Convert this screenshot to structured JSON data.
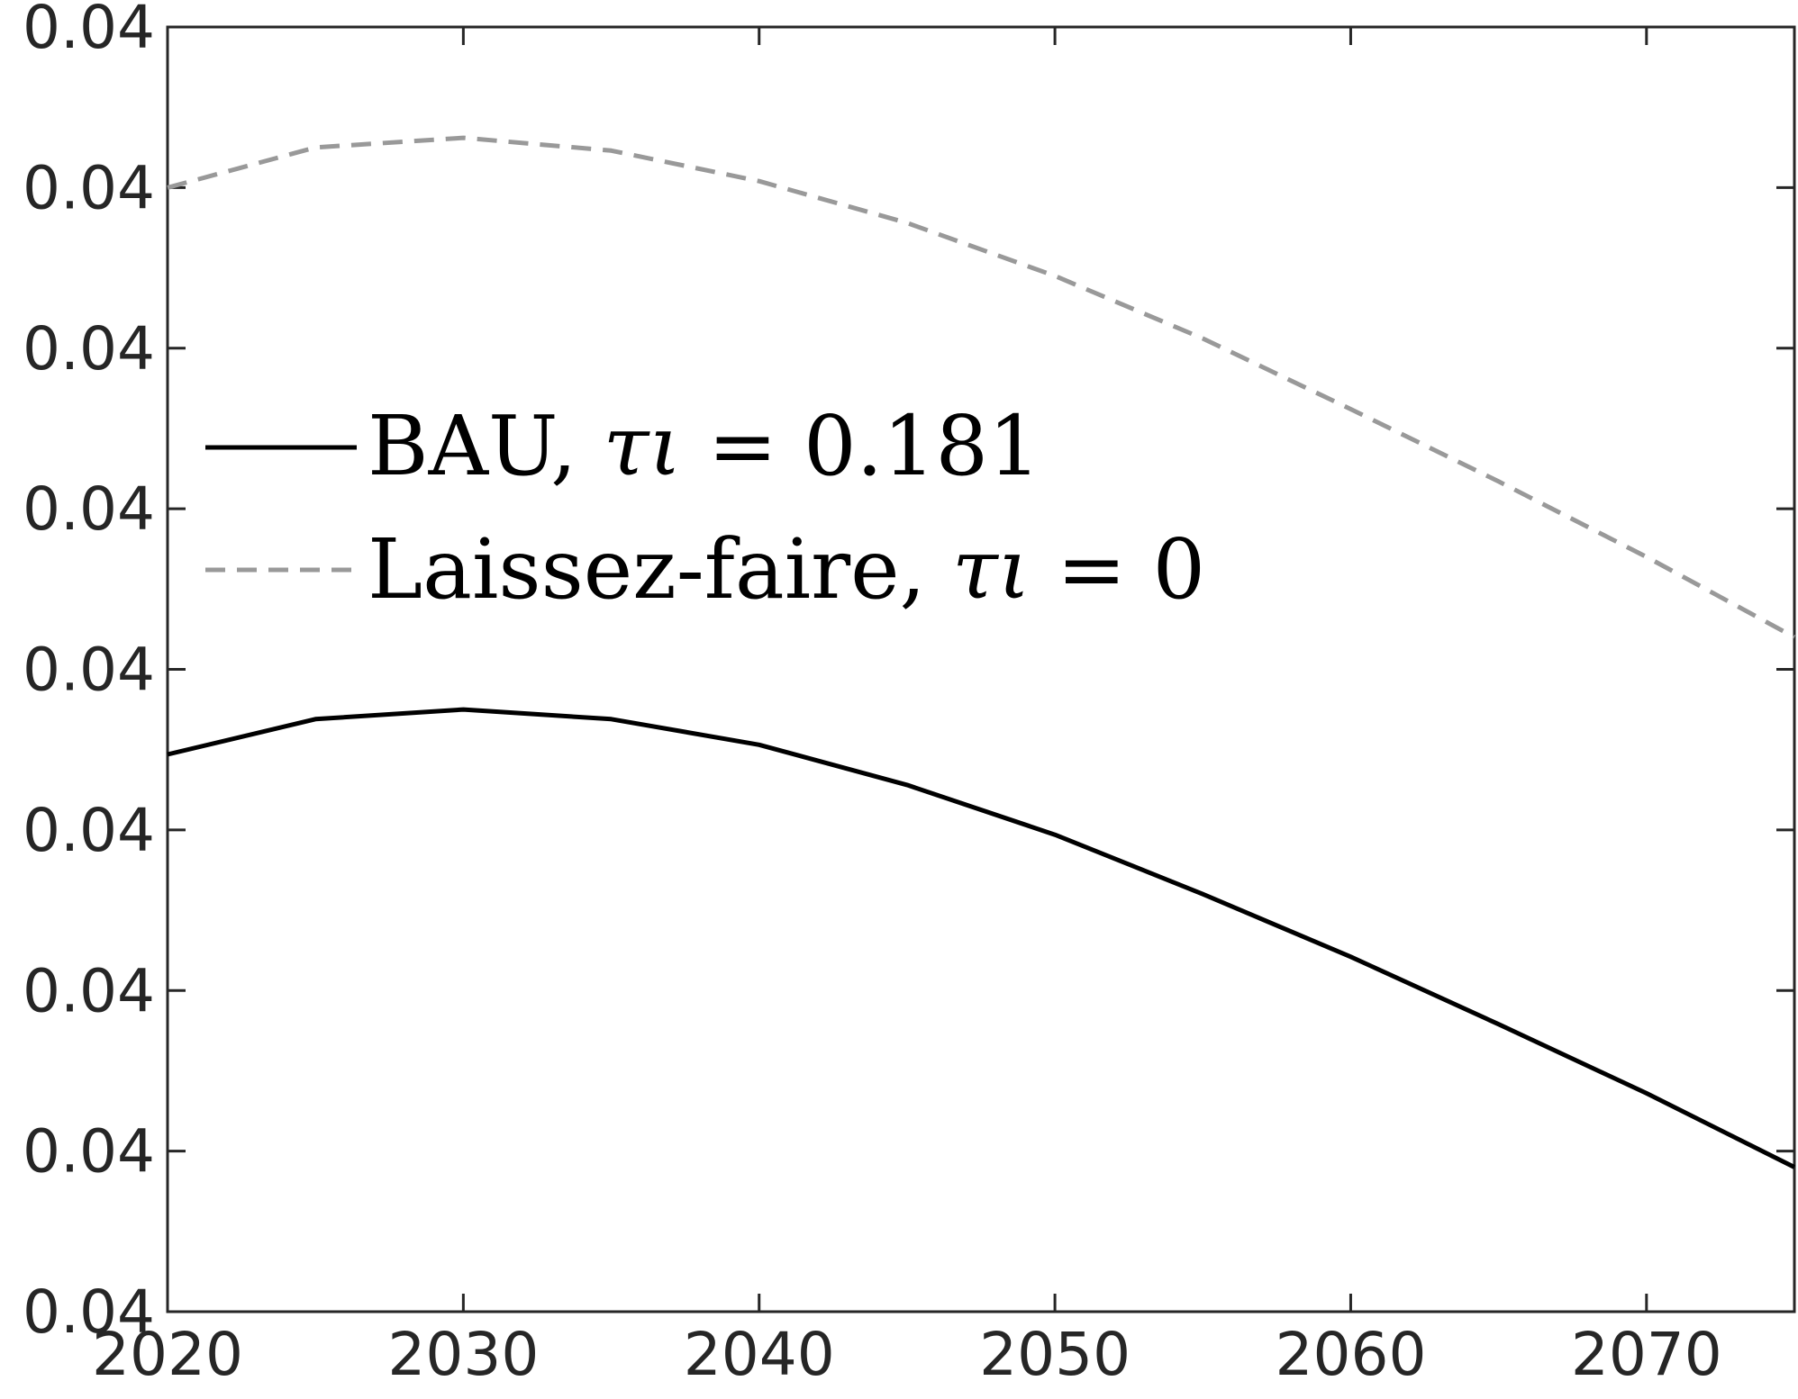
{
  "chart_data": {
    "type": "line",
    "x": [
      2020,
      2025,
      2030,
      2035,
      2040,
      2045,
      2050,
      2055,
      2060,
      2065,
      2070,
      2075
    ],
    "xlim": [
      2020,
      2075
    ],
    "ylim": [
      0,
      8
    ],
    "xticks": [
      2020,
      2030,
      2040,
      2050,
      2060,
      2070
    ],
    "x_tick_labels": [
      "2020",
      "2030",
      "2040",
      "2050",
      "2060",
      "2070"
    ],
    "y_tick_labels": [
      "0.04",
      "0.04",
      "0.04",
      "0.04",
      "0.04",
      "0.04",
      "0.04",
      "0.04",
      "0.04"
    ],
    "grid": false,
    "legend_position": "left-middle",
    "series": [
      {
        "name": "BAU, τι = 0.181",
        "name_prefix": "BAU, ",
        "name_symbol": "τι",
        "name_value": " = 0.181",
        "color": "#000000",
        "style": "solid",
        "values": [
          3.47,
          3.69,
          3.75,
          3.69,
          3.53,
          3.28,
          2.97,
          2.6,
          2.21,
          1.79,
          1.36,
          0.9
        ]
      },
      {
        "name": "Laissez-faire, τι = 0",
        "name_prefix": "Laissez-faire, ",
        "name_symbol": "τι",
        "name_value": " = 0",
        "color": "#999999",
        "style": "dashed",
        "values": [
          7.0,
          7.25,
          7.31,
          7.23,
          7.04,
          6.78,
          6.45,
          6.06,
          5.62,
          5.17,
          4.7,
          4.2
        ]
      }
    ]
  }
}
